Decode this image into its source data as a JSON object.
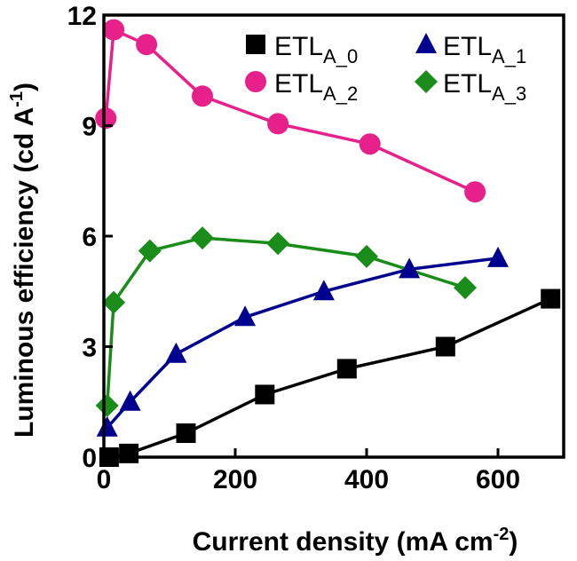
{
  "chart_data": {
    "type": "line",
    "title": "",
    "xlabel": "Current density (mA cm",
    "xlabel_sup": "-2",
    "xlabel_end": ")",
    "ylabel": "Luminous efficiency (cd A",
    "ylabel_sup": "-1",
    "ylabel_end": ")",
    "xlim": [
      0,
      700
    ],
    "ylim": [
      0,
      12
    ],
    "xticks": [
      0,
      200,
      400,
      600
    ],
    "yticks": [
      0,
      3,
      6,
      9,
      12
    ],
    "xtick_labels": [
      "0",
      "200",
      "400",
      "600"
    ],
    "ytick_labels": [
      "0",
      "3",
      "6",
      "9",
      "12"
    ],
    "grid": false,
    "legend_position": "top-right",
    "series": [
      {
        "name": "ETL",
        "sub": "A_0",
        "marker": "square",
        "color": "#000000",
        "x": [
          8,
          38,
          125,
          245,
          370,
          520,
          680
        ],
        "y": [
          0.0,
          0.1,
          0.65,
          1.7,
          2.4,
          3.0,
          4.3
        ]
      },
      {
        "name": "ETL",
        "sub": "A_1",
        "marker": "triangle",
        "color": "#00008f",
        "x": [
          5,
          40,
          110,
          215,
          335,
          465,
          600
        ],
        "y": [
          0.8,
          1.5,
          2.8,
          3.8,
          4.5,
          5.1,
          5.4
        ]
      },
      {
        "name": "ETL",
        "sub": "A_2",
        "marker": "circle",
        "color": "#e8208a",
        "x": [
          3,
          15,
          65,
          150,
          265,
          405,
          565
        ],
        "y": [
          9.2,
          11.6,
          11.2,
          9.8,
          9.05,
          8.5,
          7.2
        ]
      },
      {
        "name": "ETL",
        "sub": "A_3",
        "marker": "diamond",
        "color": "#1a8c1a",
        "x": [
          5,
          15,
          70,
          150,
          265,
          400,
          550
        ],
        "y": [
          1.4,
          4.2,
          5.6,
          5.95,
          5.8,
          5.45,
          4.6
        ]
      }
    ]
  }
}
